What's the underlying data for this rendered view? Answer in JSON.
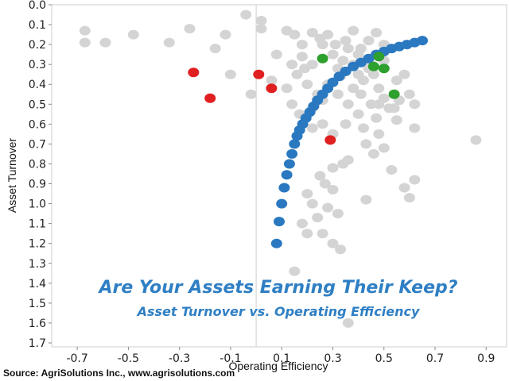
{
  "chart_data": {
    "type": "scatter",
    "xlabel": "Operating Efficiency",
    "ylabel": "Asset Turnover",
    "xlim": [
      -0.8,
      0.98
    ],
    "ylim": [
      0.0,
      1.72
    ],
    "y_inverted": true,
    "grid": false,
    "xticks": [
      "-0.7",
      "-0.5",
      "-0.3",
      "-0.1",
      "0.1",
      "0.3",
      "0.5",
      "0.7",
      "0.9"
    ],
    "xtick_values": [
      -0.7,
      -0.5,
      -0.3,
      -0.1,
      0.1,
      0.3,
      0.5,
      0.7,
      0.9
    ],
    "yticks": [
      "0.0",
      "0.1",
      "0.2",
      "0.3",
      "0.4",
      "0.5",
      "0.6",
      "0.7",
      "0.8",
      "0.9",
      "1.0",
      "1.1",
      "1.2",
      "1.3",
      "1.4",
      "1.5",
      "1.6",
      "1.7"
    ],
    "ytick_values": [
      0.0,
      0.1,
      0.2,
      0.3,
      0.4,
      0.5,
      0.6,
      0.7,
      0.8,
      0.9,
      1.0,
      1.1,
      1.2,
      1.3,
      1.4,
      1.5,
      1.6,
      1.7
    ],
    "vertical_reference_x": 0.0,
    "series": [
      {
        "color": "#d4d4d4",
        "points": [
          [
            -0.67,
            0.13
          ],
          [
            -0.67,
            0.19
          ],
          [
            -0.59,
            0.19
          ],
          [
            -0.48,
            0.15
          ],
          [
            -0.34,
            0.19
          ],
          [
            -0.26,
            0.12
          ],
          [
            -0.12,
            0.15
          ],
          [
            -0.04,
            0.05
          ],
          [
            0.02,
            0.08
          ],
          [
            0.02,
            0.12
          ],
          [
            -0.16,
            0.22
          ],
          [
            -0.1,
            0.35
          ],
          [
            -0.02,
            0.45
          ],
          [
            0.08,
            0.25
          ],
          [
            0.12,
            0.13
          ],
          [
            0.15,
            0.15
          ],
          [
            0.18,
            0.2
          ],
          [
            0.22,
            0.14
          ],
          [
            0.25,
            0.17
          ],
          [
            0.28,
            0.15
          ],
          [
            0.31,
            0.2
          ],
          [
            0.35,
            0.18
          ],
          [
            0.38,
            0.13
          ],
          [
            0.41,
            0.22
          ],
          [
            0.44,
            0.18
          ],
          [
            0.47,
            0.14
          ],
          [
            0.5,
            0.2
          ],
          [
            0.3,
            0.25
          ],
          [
            0.34,
            0.28
          ],
          [
            0.4,
            0.25
          ],
          [
            0.45,
            0.3
          ],
          [
            0.5,
            0.28
          ],
          [
            0.18,
            0.26
          ],
          [
            0.22,
            0.3
          ],
          [
            0.16,
            0.35
          ],
          [
            0.2,
            0.4
          ],
          [
            0.12,
            0.42
          ],
          [
            0.14,
            0.5
          ],
          [
            0.17,
            0.55
          ],
          [
            0.22,
            0.52
          ],
          [
            0.26,
            0.48
          ],
          [
            0.32,
            0.45
          ],
          [
            0.38,
            0.42
          ],
          [
            0.42,
            0.38
          ],
          [
            0.46,
            0.35
          ],
          [
            0.48,
            0.42
          ],
          [
            0.5,
            0.47
          ],
          [
            0.45,
            0.5
          ],
          [
            0.4,
            0.55
          ],
          [
            0.35,
            0.6
          ],
          [
            0.3,
            0.65
          ],
          [
            0.26,
            0.6
          ],
          [
            0.22,
            0.62
          ],
          [
            0.42,
            0.62
          ],
          [
            0.47,
            0.57
          ],
          [
            0.52,
            0.52
          ],
          [
            0.55,
            0.58
          ],
          [
            0.48,
            0.65
          ],
          [
            0.43,
            0.7
          ],
          [
            0.46,
            0.75
          ],
          [
            0.5,
            0.72
          ],
          [
            0.36,
            0.78
          ],
          [
            0.34,
            0.8
          ],
          [
            0.3,
            0.82
          ],
          [
            0.25,
            0.86
          ],
          [
            0.27,
            0.9
          ],
          [
            0.3,
            0.93
          ],
          [
            0.2,
            0.95
          ],
          [
            0.22,
            1.0
          ],
          [
            0.28,
            1.02
          ],
          [
            0.24,
            1.07
          ],
          [
            0.18,
            1.1
          ],
          [
            0.2,
            1.15
          ],
          [
            0.26,
            1.15
          ],
          [
            0.3,
            1.2
          ],
          [
            0.33,
            1.23
          ],
          [
            0.15,
            1.34
          ],
          [
            0.43,
            0.98
          ],
          [
            0.53,
            0.83
          ],
          [
            0.58,
            0.92
          ],
          [
            0.62,
            0.88
          ],
          [
            0.6,
            0.97
          ],
          [
            0.62,
            0.62
          ],
          [
            0.62,
            0.5
          ],
          [
            0.86,
            0.68
          ],
          [
            0.54,
            0.52
          ],
          [
            0.56,
            0.48
          ],
          [
            0.41,
            0.45
          ],
          [
            0.36,
            0.5
          ],
          [
            0.55,
            0.38
          ],
          [
            0.58,
            0.35
          ],
          [
            0.6,
            0.45
          ],
          [
            0.33,
            0.36
          ],
          [
            0.28,
            0.4
          ],
          [
            0.24,
            0.45
          ],
          [
            0.19,
            0.32
          ],
          [
            0.14,
            0.3
          ],
          [
            0.06,
            0.38
          ],
          [
            0.36,
            1.6
          ],
          [
            0.32,
            1.05
          ],
          [
            0.44,
            0.32
          ],
          [
            0.4,
            0.35
          ],
          [
            0.38,
            0.3
          ],
          [
            0.32,
            0.32
          ],
          [
            0.26,
            0.2
          ],
          [
            0.36,
            0.22
          ],
          [
            0.48,
            0.5
          ]
        ]
      },
      {
        "color": "#2a78c0",
        "points": [
          [
            0.65,
            0.18
          ],
          [
            0.62,
            0.19
          ],
          [
            0.59,
            0.2
          ],
          [
            0.56,
            0.21
          ],
          [
            0.53,
            0.22
          ],
          [
            0.5,
            0.235
          ],
          [
            0.47,
            0.25
          ],
          [
            0.44,
            0.27
          ],
          [
            0.41,
            0.29
          ],
          [
            0.38,
            0.31
          ],
          [
            0.35,
            0.335
          ],
          [
            0.325,
            0.36
          ],
          [
            0.3,
            0.39
          ],
          [
            0.28,
            0.42
          ],
          [
            0.26,
            0.45
          ],
          [
            0.24,
            0.48
          ],
          [
            0.225,
            0.51
          ],
          [
            0.21,
            0.54
          ],
          [
            0.195,
            0.57
          ],
          [
            0.182,
            0.6
          ],
          [
            0.17,
            0.63
          ],
          [
            0.16,
            0.66
          ],
          [
            0.15,
            0.7
          ],
          [
            0.14,
            0.75
          ],
          [
            0.13,
            0.8
          ],
          [
            0.12,
            0.855
          ],
          [
            0.11,
            0.92
          ],
          [
            0.1,
            1.0
          ],
          [
            0.09,
            1.09
          ],
          [
            0.08,
            1.2
          ]
        ]
      },
      {
        "color": "#e02020",
        "points": [
          [
            -0.245,
            0.34
          ],
          [
            0.01,
            0.35
          ],
          [
            -0.18,
            0.47
          ],
          [
            0.06,
            0.42
          ],
          [
            0.29,
            0.68
          ]
        ]
      },
      {
        "color": "#2ea02e",
        "points": [
          [
            0.26,
            0.27
          ],
          [
            0.48,
            0.26
          ],
          [
            0.46,
            0.31
          ],
          [
            0.5,
            0.32
          ],
          [
            0.54,
            0.45
          ]
        ]
      }
    ]
  },
  "overlay": {
    "title": "Are Your Assets Earning Their Keep?",
    "subtitle": "Asset Turnover vs. Operating Efficiency"
  },
  "source_text": "Source: AgriSolutions Inc., www.agrisolutions.com"
}
